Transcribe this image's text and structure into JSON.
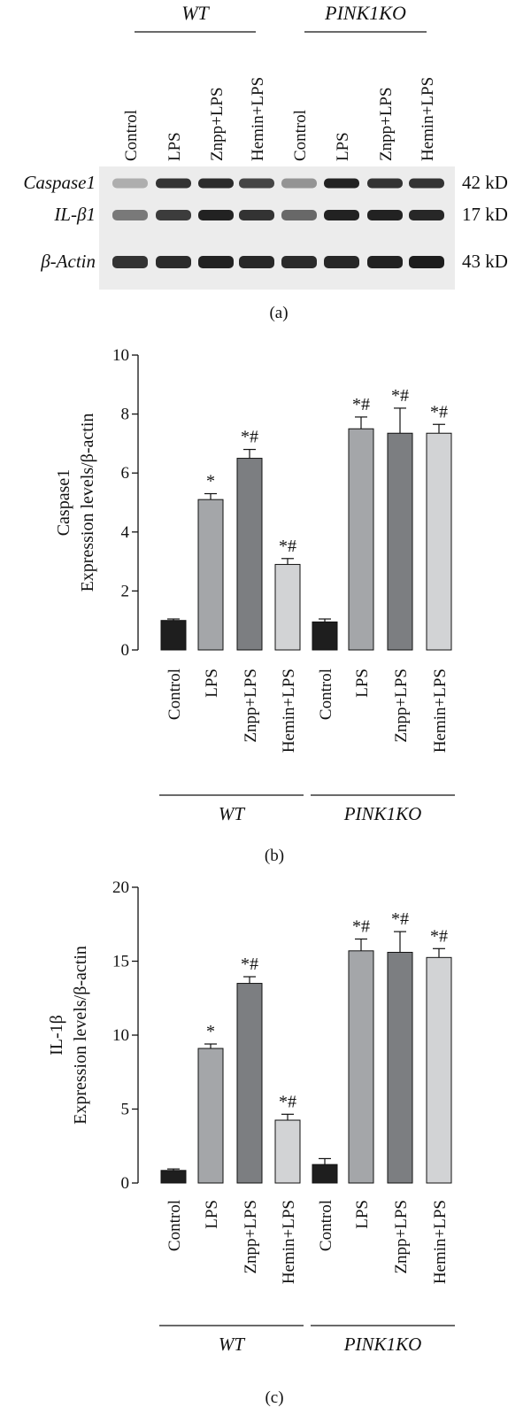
{
  "blot": {
    "groups": [
      "WT",
      "PINK1KO"
    ],
    "lanes": [
      "Control",
      "LPS",
      "Znpp+LPS",
      "Hemin+LPS",
      "Control",
      "LPS",
      "Znpp+LPS",
      "Hemin+LPS"
    ],
    "rows": [
      {
        "label": "Caspase1",
        "kd": "42 kD"
      },
      {
        "label": "IL-β1",
        "kd": "17 kD"
      },
      {
        "label": "β-Actin",
        "kd": "43 kD"
      }
    ],
    "caption": "(a)"
  },
  "chart_data": [
    {
      "type": "bar",
      "caption": "(b)",
      "ylabel_top": "Caspase1",
      "ylabel_bottom": "Expression levels/β-actin",
      "ylim": [
        0,
        10
      ],
      "yticks": [
        0,
        2,
        4,
        6,
        8,
        10
      ],
      "categories": [
        "Control",
        "LPS",
        "Znpp+LPS",
        "Hemin+LPS",
        "Control",
        "LPS",
        "Znpp+LPS",
        "Hemin+LPS"
      ],
      "groups": [
        "WT",
        "PINK1KO"
      ],
      "values": [
        1.0,
        5.1,
        6.5,
        2.9,
        0.95,
        7.5,
        7.35,
        7.35
      ],
      "errors": [
        0.05,
        0.2,
        0.3,
        0.2,
        0.1,
        0.4,
        0.85,
        0.3
      ],
      "annotations": [
        "",
        "*",
        "*#",
        "*#",
        "",
        "*#",
        "*#",
        "*#"
      ],
      "colors": [
        "#1e1e1e",
        "#a4a6a9",
        "#7c7e81",
        "#d2d3d5",
        "#1e1e1e",
        "#a4a6a9",
        "#7c7e81",
        "#d2d3d5"
      ]
    },
    {
      "type": "bar",
      "caption": "(c)",
      "ylabel_top": "IL-1β",
      "ylabel_bottom": "Expression levels/β-actin",
      "ylim": [
        0,
        20
      ],
      "yticks": [
        0,
        5,
        10,
        15,
        20
      ],
      "categories": [
        "Control",
        "LPS",
        "Znpp+LPS",
        "Hemin+LPS",
        "Control",
        "LPS",
        "Znpp+LPS",
        "Hemin+LPS"
      ],
      "groups": [
        "WT",
        "PINK1KO"
      ],
      "values": [
        0.85,
        9.1,
        13.5,
        4.25,
        1.25,
        15.7,
        15.6,
        15.25
      ],
      "errors": [
        0.1,
        0.3,
        0.45,
        0.4,
        0.4,
        0.8,
        1.4,
        0.6
      ],
      "annotations": [
        "",
        "*",
        "*#",
        "*#",
        "",
        "*#",
        "*#",
        "*#"
      ],
      "colors": [
        "#1e1e1e",
        "#a4a6a9",
        "#7c7e81",
        "#d2d3d5",
        "#1e1e1e",
        "#a4a6a9",
        "#7c7e81",
        "#d2d3d5"
      ]
    }
  ]
}
